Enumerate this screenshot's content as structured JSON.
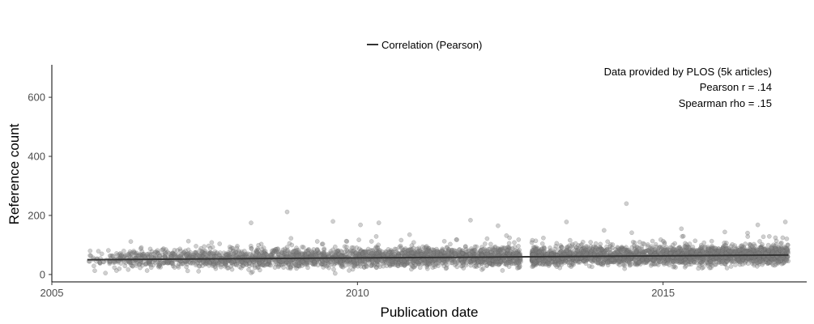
{
  "chart_data": {
    "type": "scatter",
    "title": "",
    "xlabel": "Publication date",
    "ylabel": "Reference count",
    "xlim": [
      2005.0,
      2017.35
    ],
    "ylim": [
      -25,
      710
    ],
    "x_ticks": [
      2005,
      2010,
      2015
    ],
    "x_tick_labels": [
      "2005",
      "2010",
      "2015"
    ],
    "y_ticks": [
      0,
      200,
      400,
      600
    ],
    "y_tick_labels": [
      "0",
      "200",
      "400",
      "600"
    ],
    "grid": false,
    "legend": {
      "position": "top-center",
      "entries": [
        "Correlation (Pearson)"
      ]
    },
    "annotations": [
      "Data provided by PLOS (5k articles)",
      "Pearson r = .14",
      "Spearman rho = .15"
    ],
    "colors": {
      "points": "#808080",
      "line": "#333333",
      "axis": "#000000"
    },
    "series": [
      {
        "name": "Correlation (Pearson)",
        "type": "line",
        "x": [
          2005.58,
          2017.05
        ],
        "y": [
          50,
          66
        ]
      },
      {
        "type": "scatter",
        "x_range": [
          2005.58,
          2017.05
        ],
        "count": 5000,
        "y_trend": [
          50,
          66
        ],
        "gap": [
          2012.68,
          2012.85
        ],
        "outliers": [
          {
            "x": 2008.26,
            "y": 175
          },
          {
            "x": 2008.85,
            "y": 212
          },
          {
            "x": 2009.6,
            "y": 180
          },
          {
            "x": 2010.05,
            "y": 168
          },
          {
            "x": 2010.35,
            "y": 175
          },
          {
            "x": 2011.85,
            "y": 184
          },
          {
            "x": 2012.3,
            "y": 165
          },
          {
            "x": 2013.42,
            "y": 178
          },
          {
            "x": 2014.4,
            "y": 240
          },
          {
            "x": 2015.3,
            "y": 155
          },
          {
            "x": 2016.55,
            "y": 168
          },
          {
            "x": 2017.0,
            "y": 178
          }
        ]
      }
    ]
  }
}
